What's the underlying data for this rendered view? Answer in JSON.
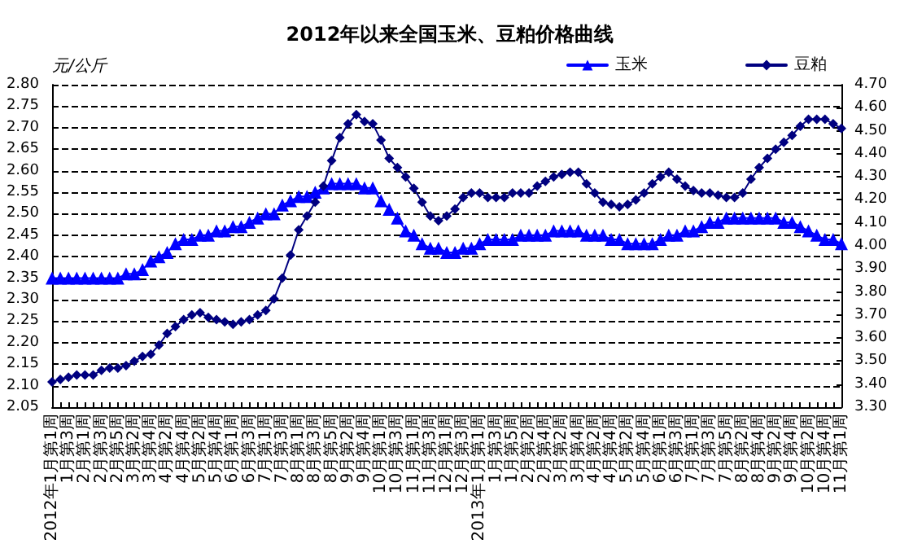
{
  "chart_data": {
    "type": "line",
    "title": "2012年以来全国玉米、豆粕价格曲线",
    "ylabel": "元/公斤",
    "categories": [
      "2012年1月第1周",
      null,
      "1月第3周",
      null,
      "2月第1周",
      null,
      "2月第3周",
      null,
      "2月第5周",
      null,
      "3月第2周",
      null,
      "3月第4周",
      null,
      "4月第2周",
      null,
      "4月第4周",
      null,
      "5月第2周",
      null,
      "5月第4周",
      null,
      "6月第1周",
      null,
      "6月第3周",
      null,
      "7月第1周",
      null,
      "7月第3周",
      null,
      "8月第1周",
      null,
      "8月第3周",
      null,
      "8月第5周",
      null,
      "9月第2周",
      null,
      "9月第4周",
      null,
      "10月第1周",
      null,
      "10月第3周",
      null,
      "11月第1周",
      null,
      "11月第3周",
      null,
      "12月第1周",
      null,
      "12月第3周",
      null,
      "2013年1月第1周",
      null,
      "1月第3周",
      null,
      "1月第5周",
      null,
      "2月第2周",
      null,
      "2月第4周",
      null,
      "3月第2周",
      null,
      "3月第4周",
      null,
      "4月第2周",
      null,
      "4月第4周",
      null,
      "5月第2周",
      null,
      "5月第4周",
      null,
      "6月第1周",
      null,
      "6月第3周",
      null,
      "7月第1周",
      null,
      "7月第3周",
      null,
      "7月第5周",
      null,
      "8月第2周",
      null,
      "8月第4周",
      null,
      "9月第2周",
      null,
      "9月第4周",
      null,
      "10月第2周",
      null,
      "10月第4周",
      null,
      "11月第1周"
    ],
    "series": [
      {
        "name": "玉米",
        "color": "#0000ff",
        "marker": "triangle",
        "values": [
          2.35,
          2.35,
          2.35,
          2.35,
          2.35,
          2.35,
          2.35,
          2.35,
          2.35,
          2.36,
          2.36,
          2.37,
          2.39,
          2.4,
          2.41,
          2.43,
          2.44,
          2.44,
          2.45,
          2.45,
          2.46,
          2.46,
          2.47,
          2.47,
          2.48,
          2.49,
          2.5,
          2.5,
          2.52,
          2.53,
          2.54,
          2.54,
          2.55,
          2.56,
          2.57,
          2.57,
          2.57,
          2.57,
          2.56,
          2.56,
          2.53,
          2.51,
          2.49,
          2.46,
          2.45,
          2.43,
          2.42,
          2.42,
          2.41,
          2.41,
          2.42,
          2.42,
          2.43,
          2.44,
          2.44,
          2.44,
          2.44,
          2.45,
          2.45,
          2.45,
          2.45,
          2.46,
          2.46,
          2.46,
          2.46,
          2.45,
          2.45,
          2.45,
          2.44,
          2.44,
          2.43,
          2.43,
          2.43,
          2.43,
          2.44,
          2.45,
          2.45,
          2.46,
          2.46,
          2.47,
          2.48,
          2.48,
          2.49,
          2.49,
          2.49,
          2.49,
          2.49,
          2.49,
          2.49,
          2.48,
          2.48,
          2.47,
          2.46,
          2.45,
          2.44,
          2.44,
          2.43
        ]
      },
      {
        "name": "豆粕",
        "color": "#000080",
        "marker": "diamond",
        "axis": "y2",
        "values": [
          3.41,
          3.42,
          3.43,
          3.44,
          3.44,
          3.44,
          3.46,
          3.47,
          3.47,
          3.48,
          3.5,
          3.52,
          3.53,
          3.57,
          3.62,
          3.65,
          3.68,
          3.7,
          3.71,
          3.69,
          3.68,
          3.67,
          3.66,
          3.67,
          3.68,
          3.7,
          3.72,
          3.77,
          3.86,
          3.96,
          4.07,
          4.13,
          4.19,
          4.26,
          4.37,
          4.47,
          4.53,
          4.57,
          4.54,
          4.53,
          4.46,
          4.38,
          4.34,
          4.3,
          4.25,
          4.19,
          4.13,
          4.11,
          4.13,
          4.16,
          4.21,
          4.23,
          4.23,
          4.21,
          4.21,
          4.21,
          4.23,
          4.23,
          4.23,
          4.26,
          4.28,
          4.3,
          4.31,
          4.32,
          4.32,
          4.27,
          4.23,
          4.19,
          4.18,
          4.17,
          4.18,
          4.2,
          4.23,
          4.27,
          4.3,
          4.32,
          4.29,
          4.26,
          4.24,
          4.23,
          4.23,
          4.22,
          4.21,
          4.21,
          4.23,
          4.29,
          4.34,
          4.38,
          4.42,
          4.45,
          4.48,
          4.52,
          4.55,
          4.55,
          4.55,
          4.53,
          4.51
        ]
      }
    ],
    "ylim": [
      2.05,
      2.8
    ],
    "yticks": [
      {
        "value": 2.05,
        "label": "2.05"
      },
      {
        "value": 2.1,
        "label": "2.10"
      },
      {
        "value": 2.15,
        "label": "2.15"
      },
      {
        "value": 2.2,
        "label": "2.20"
      },
      {
        "value": 2.25,
        "label": "2.25"
      },
      {
        "value": 2.3,
        "label": "2.30"
      },
      {
        "value": 2.35,
        "label": "2.35"
      },
      {
        "value": 2.4,
        "label": "2.40"
      },
      {
        "value": 2.45,
        "label": "2.45"
      },
      {
        "value": 2.5,
        "label": "2.50"
      },
      {
        "value": 2.55,
        "label": "2.55"
      },
      {
        "value": 2.6,
        "label": "2.60"
      },
      {
        "value": 2.65,
        "label": "2.65"
      },
      {
        "value": 2.7,
        "label": "2.70"
      },
      {
        "value": 2.75,
        "label": "2.75"
      },
      {
        "value": 2.8,
        "label": "2.80"
      }
    ],
    "y2lim": [
      3.3,
      4.7
    ],
    "y2ticks": [
      {
        "value": 3.3,
        "label": "3.30"
      },
      {
        "value": 3.4,
        "label": "3.40"
      },
      {
        "value": 3.5,
        "label": "3.50"
      },
      {
        "value": 3.6,
        "label": "3.60"
      },
      {
        "value": 3.7,
        "label": "3.70"
      },
      {
        "value": 3.8,
        "label": "3.80"
      },
      {
        "value": 3.9,
        "label": "3.90"
      },
      {
        "value": 4.0,
        "label": "4.00"
      },
      {
        "value": 4.1,
        "label": "4.10"
      },
      {
        "value": 4.2,
        "label": "4.20"
      },
      {
        "value": 4.3,
        "label": "4.30"
      },
      {
        "value": 4.4,
        "label": "4.40"
      },
      {
        "value": 4.5,
        "label": "4.50"
      },
      {
        "value": 4.6,
        "label": "4.60"
      },
      {
        "value": 4.7,
        "label": "4.70"
      }
    ],
    "grid": "y",
    "legend": "top right",
    "line_style": "solid"
  }
}
